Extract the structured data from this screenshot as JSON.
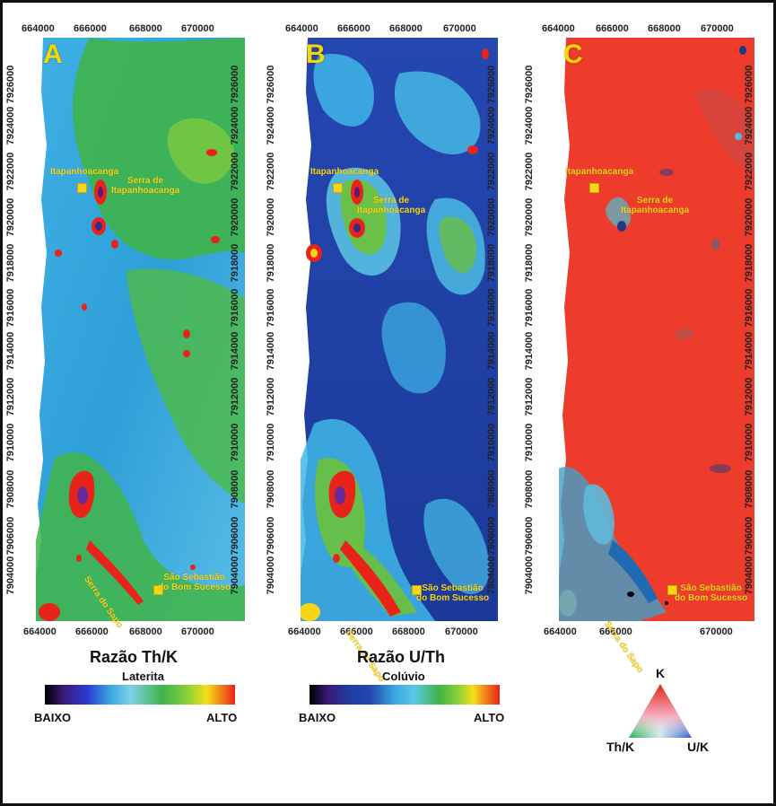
{
  "x_ticks": [
    "664000",
    "666000",
    "668000",
    "670000"
  ],
  "y_ticks": [
    "7926000",
    "7924000",
    "7922000",
    "7920000",
    "7918000",
    "7916000",
    "7914000",
    "7912000",
    "7910000",
    "7908000",
    "7906000",
    "7904000"
  ],
  "panels": [
    {
      "letter": "A",
      "base_color": "#3aa9e0",
      "variant": "thk"
    },
    {
      "letter": "B",
      "base_color": "#1f3fa0",
      "variant": "uth"
    },
    {
      "letter": "C",
      "base_color": "#ee3c2c",
      "variant": "ternary"
    }
  ],
  "places": {
    "itapanhoacanga_a": "Itapanhoacanga",
    "serra_a": [
      "Serra de",
      "Itapanhoacanga"
    ],
    "sao_a": [
      "São Sebastião",
      "do Bom Sucesso"
    ],
    "itapanhoacanga_b": "Itapanhoacanga",
    "serra_b": [
      "Serra de",
      "Itapanhoacanga"
    ],
    "sao_b": [
      "São Sebastião",
      "do Bom Sucesso"
    ],
    "itapanhoacanga_c": "Itapanhoacanga",
    "serra_c": [
      "Serra de",
      "Itapanhoacanga"
    ],
    "sao_c": [
      "São Sebastião",
      "do Bom Sucesso"
    ],
    "serra_sapo_a": "Serra do Sapo",
    "serra_sapo_b": "Serra do Sapo",
    "serra_sapo_c": "Serra do Sapo"
  },
  "legend_a": {
    "title": "Razão Th/K",
    "subtitle": "Laterita",
    "low": "BAIXO",
    "high": "ALTO"
  },
  "legend_b": {
    "title": "Razão U/Th",
    "subtitle": "Colúvio",
    "low": "BAIXO",
    "high": "ALTO"
  },
  "legend_c": {
    "top": "K",
    "left": "Th/K",
    "right": "U/K"
  },
  "colors": {
    "low": "#000000",
    "high": "#ee2a1c",
    "marker": "#f7d618"
  }
}
